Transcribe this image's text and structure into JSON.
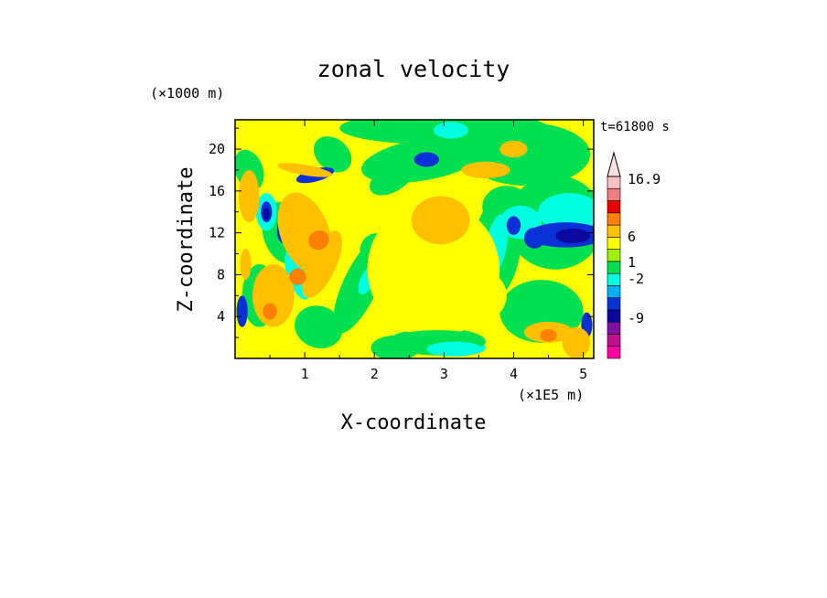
{
  "chart_data": {
    "type": "heatmap",
    "title": "zonal velocity",
    "xlabel": "X-coordinate",
    "ylabel": "Z-coordinate",
    "x_unit_label": "(×1E5 m)",
    "y_unit_label": "(×1000 m)",
    "time_label": "t=61800 s",
    "xlim": [
      0.0,
      5.15
    ],
    "ylim": [
      0.0,
      22.8
    ],
    "x_ticks": [
      1,
      2,
      3,
      4,
      5
    ],
    "y_ticks": [
      4,
      8,
      12,
      16,
      20
    ],
    "colorbar": {
      "labels": [
        {
          "text": "16.9",
          "value": 16.9
        },
        {
          "text": "6",
          "value": 6
        },
        {
          "text": "1",
          "value": 1
        },
        {
          "text": "-2",
          "value": -2
        },
        {
          "text": "-9",
          "value": -9
        }
      ],
      "levels": [
        {
          "color": "#ff00a0"
        },
        {
          "color": "#c01090"
        },
        {
          "color": "#8010a0"
        },
        {
          "color": "#0a0aa0"
        },
        {
          "color": "#0a30d8"
        },
        {
          "color": "#00b0ff"
        },
        {
          "color": "#00ffe0"
        },
        {
          "color": "#00e050"
        },
        {
          "color": "#a0f000"
        },
        {
          "color": "#ffff00"
        },
        {
          "color": "#ffc000"
        },
        {
          "color": "#ff8000"
        },
        {
          "color": "#e80000"
        },
        {
          "color": "#f08080"
        },
        {
          "color": "#f8c0c0"
        }
      ]
    },
    "field_colors": {
      "background": "#ffff00",
      "weak_positive": "#ffc000",
      "moderate_positive": "#ff8000",
      "weak_negative": "#00e050",
      "moderate_negative": "#00ffe0",
      "strong_negative": "#0a30d8",
      "very_negative": "#0a0aa0"
    }
  }
}
